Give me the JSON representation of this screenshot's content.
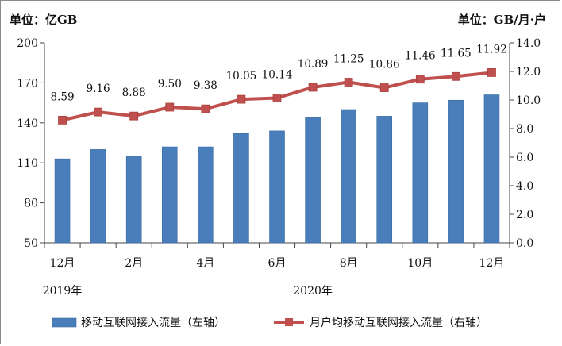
{
  "chart_data": {
    "type": "bar+line",
    "left_unit": "单位：亿GB",
    "right_unit": "单位：GB/月·户",
    "categories": [
      "2019-12",
      "2020-01",
      "2020-02",
      "2020-03",
      "2020-04",
      "2020-05",
      "2020-06",
      "2020-07",
      "2020-08",
      "2020-09",
      "2020-10",
      "2020-11",
      "2020-12"
    ],
    "x_tick_labels": [
      "12月",
      "",
      "2月",
      "",
      "4月",
      "",
      "6月",
      "",
      "8月",
      "",
      "10月",
      "",
      "12月"
    ],
    "year_labels": [
      "2019年",
      "2020年"
    ],
    "series": [
      {
        "name": "移动互联网接入流量（左轴）",
        "type": "bar",
        "axis": "left",
        "color": "#4a7ebb",
        "values": [
          113,
          120,
          115,
          122,
          122,
          132,
          134,
          144,
          150,
          145,
          155,
          157,
          161
        ]
      },
      {
        "name": "月户均移动互联网接入流量（右轴）",
        "type": "line",
        "axis": "right",
        "color": "#c0504d",
        "values": [
          8.59,
          9.16,
          8.88,
          9.5,
          9.38,
          10.05,
          10.14,
          10.89,
          11.25,
          10.86,
          11.46,
          11.65,
          11.92
        ],
        "labels": [
          "8.59",
          "9.16",
          "8.88",
          "9.50",
          "9.38",
          "10.05",
          "10.14",
          "10.89",
          "11.25",
          "10.86",
          "11.46",
          "11.65",
          "11.92"
        ]
      }
    ],
    "left_axis": {
      "min": 50,
      "max": 200,
      "ticks": [
        50,
        80,
        110,
        140,
        170,
        200
      ],
      "tick_labels": [
        "50",
        "80",
        "110",
        "140",
        "170",
        "200"
      ]
    },
    "right_axis": {
      "min": 0,
      "max": 14,
      "ticks": [
        0,
        2,
        4,
        6,
        8,
        10,
        12,
        14
      ],
      "tick_labels": [
        "0.0",
        "2.0",
        "4.0",
        "6.0",
        "8.0",
        "10.0",
        "12.0",
        "14.0"
      ]
    },
    "legend_position": "bottom"
  }
}
